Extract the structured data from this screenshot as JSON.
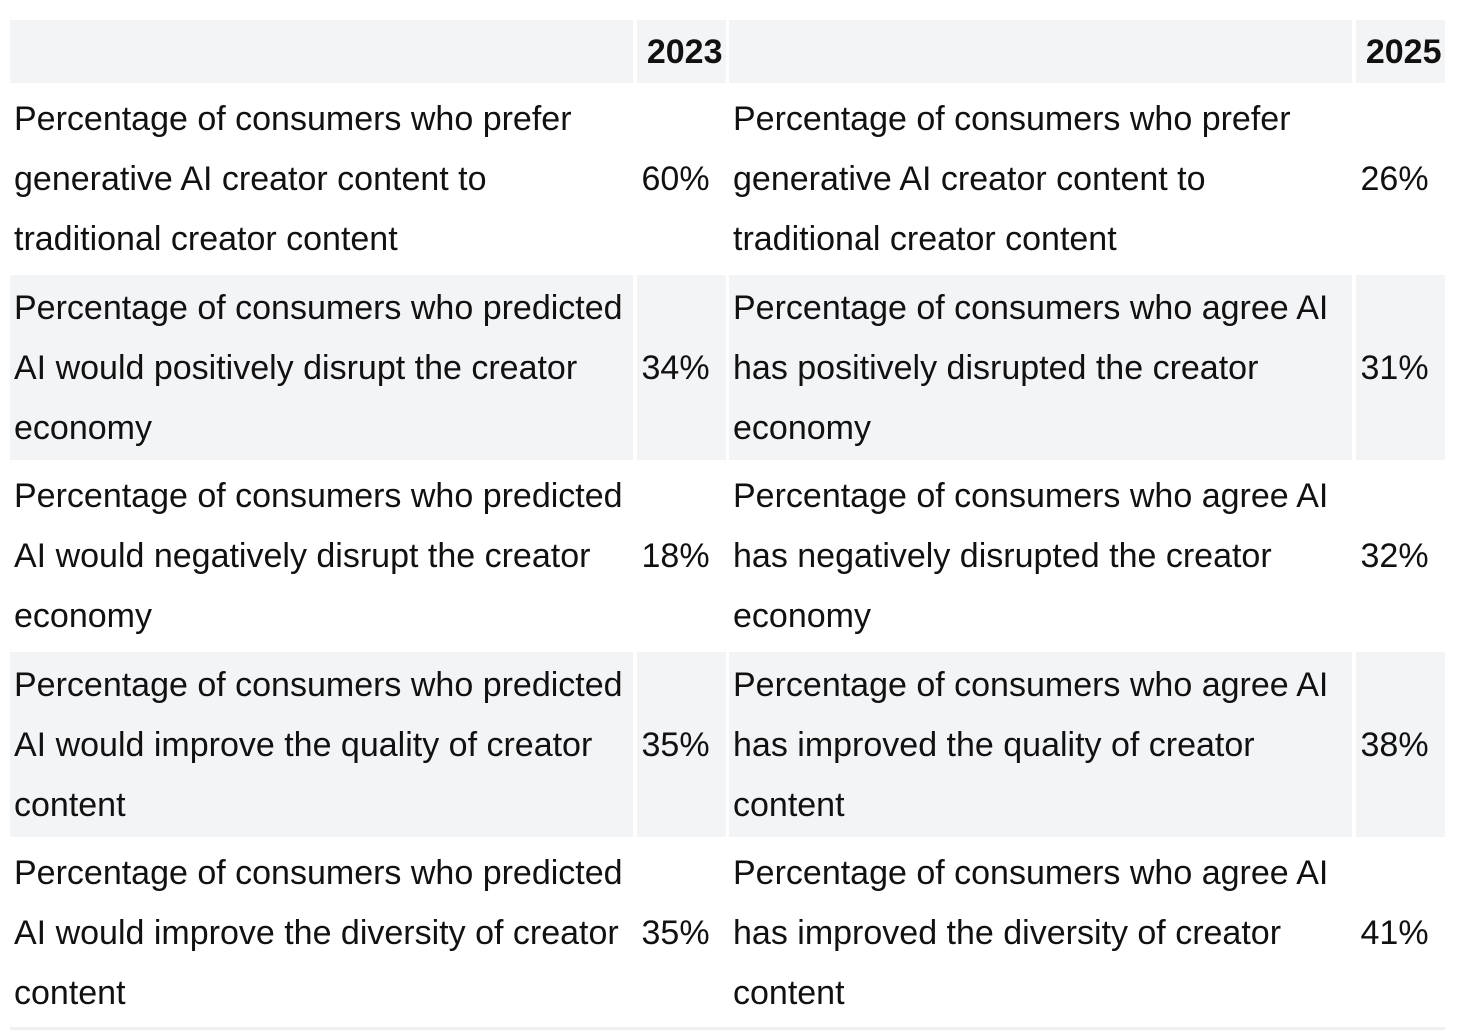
{
  "header": {
    "col_2023": "2023",
    "col_2025": "2025"
  },
  "rows": [
    {
      "desc_2023": "Percentage of consumers who prefer generative AI creator content to traditional creator content",
      "val_2023": "60%",
      "desc_2025": "Percentage of consumers who prefer generative AI creator content to traditional creator content",
      "val_2025": "26%"
    },
    {
      "desc_2023": "Percentage of consumers who predicted AI would positively disrupt the creator economy",
      "val_2023": "34%",
      "desc_2025": "Percentage of consumers who agree AI has positively disrupted the creator economy",
      "val_2025": "31%"
    },
    {
      "desc_2023": "Percentage of consumers who predicted AI would negatively disrupt the creator economy",
      "val_2023": "18%",
      "desc_2025": "Percentage of consumers who agree AI has negatively disrupted the creator economy",
      "val_2025": "32%"
    },
    {
      "desc_2023": "Percentage of consumers who predicted AI would improve the quality of creator content",
      "val_2023": "35%",
      "desc_2025": "Percentage of consumers who agree AI has improved the quality of creator content",
      "val_2025": "38%"
    },
    {
      "desc_2023": "Percentage of consumers who predicted AI would improve the diversity of creator content",
      "val_2023": "35%",
      "desc_2025": "Percentage of consumers who agree AI has improved the diversity of creator content",
      "val_2025": "41%"
    }
  ]
}
